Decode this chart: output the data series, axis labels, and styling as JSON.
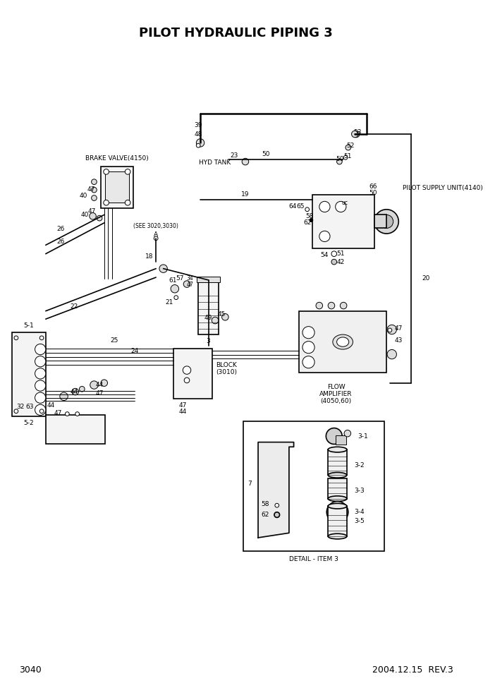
{
  "title": "PILOT HYDRAULIC PIPING 3",
  "page_num": "3040",
  "date_rev": "2004.12.15  REV.3",
  "bg_color": "#ffffff",
  "lw_main": 1.2,
  "lw_thin": 0.7,
  "lw_thick": 1.8,
  "fs": 6.5,
  "fs_sm": 5.5,
  "fs_title": 13,
  "fs_footer": 9,
  "labels": {
    "brake_valve": "BRAKE VALVE(4150)",
    "hyd_tank": "HYD TANK",
    "pilot_supply": "PILOT SUPPLY UNIT(4140)",
    "see_note": "(SEE 3020,3030)",
    "block": "BLOCK\n(3010)",
    "flow_amp": "FLOW\nAMPLIFIER\n(4050,60)",
    "detail": "DETAIL - ITEM 3"
  }
}
